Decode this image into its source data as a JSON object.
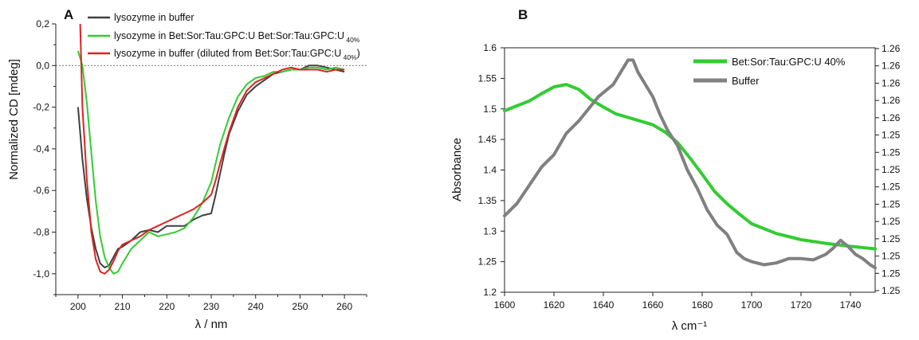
{
  "chart_data": [
    {
      "panel": "A",
      "type": "line",
      "xlabel": "λ / nm",
      "ylabel": "Normalized CD [mdeg]",
      "xlim": [
        195,
        265
      ],
      "ylim": [
        -1.1,
        0.2
      ],
      "xticks": [
        "200",
        "210",
        "220",
        "230",
        "240",
        "250",
        "260"
      ],
      "yticks": [
        "0,2",
        "0,0",
        "-0,2",
        "-0,4",
        "-0,6",
        "-0,8",
        "-1,0"
      ],
      "zero_line": true,
      "legend_placement": "top",
      "series": [
        {
          "name": "lysozyme in buffer",
          "color": "#404040",
          "x": [
            200,
            201,
            202,
            203,
            204,
            205,
            206,
            207,
            208,
            209,
            210,
            212,
            214,
            216,
            218,
            220,
            222,
            224,
            226,
            228,
            230,
            231,
            232,
            233,
            234,
            236,
            238,
            240,
            242,
            244,
            246,
            248,
            250,
            252,
            254,
            256,
            258,
            260
          ],
          "y": [
            -0.2,
            -0.45,
            -0.64,
            -0.78,
            -0.88,
            -0.95,
            -0.97,
            -0.96,
            -0.92,
            -0.88,
            -0.87,
            -0.84,
            -0.8,
            -0.79,
            -0.8,
            -0.77,
            -0.77,
            -0.77,
            -0.74,
            -0.72,
            -0.71,
            -0.62,
            -0.52,
            -0.42,
            -0.33,
            -0.22,
            -0.14,
            -0.1,
            -0.07,
            -0.04,
            -0.03,
            -0.02,
            -0.02,
            0.0,
            0.0,
            -0.01,
            -0.02,
            -0.03
          ]
        },
        {
          "name": "lysozyme in Bet:Sor:Tau:GPC:U Bet:Sor:Tau:GPC:U 40%",
          "color": "#33cc33",
          "x": [
            200,
            201,
            202,
            203,
            204,
            205,
            206,
            207,
            208,
            209,
            210,
            212,
            214,
            216,
            218,
            220,
            222,
            224,
            226,
            228,
            230,
            232,
            234,
            236,
            238,
            240,
            242,
            244,
            246,
            248,
            250,
            252,
            254,
            256,
            258,
            260
          ],
          "y": [
            0.07,
            0.0,
            -0.18,
            -0.42,
            -0.65,
            -0.82,
            -0.92,
            -0.97,
            -1.0,
            -0.99,
            -0.95,
            -0.88,
            -0.84,
            -0.8,
            -0.82,
            -0.81,
            -0.8,
            -0.78,
            -0.73,
            -0.66,
            -0.56,
            -0.38,
            -0.25,
            -0.15,
            -0.09,
            -0.06,
            -0.05,
            -0.03,
            -0.03,
            -0.02,
            -0.02,
            -0.01,
            -0.01,
            -0.02,
            -0.01,
            -0.02
          ]
        },
        {
          "name": "lysozyme in buffer (diluted from Bet:Sor:Tau:GPC:U 40%)",
          "color": "#dd2222",
          "x": [
            200.5,
            201,
            202,
            203,
            204,
            205,
            206,
            207,
            208,
            209,
            210,
            212,
            214,
            216,
            218,
            220,
            222,
            224,
            226,
            228,
            230,
            231,
            232,
            234,
            236,
            238,
            240,
            242,
            244,
            246,
            248,
            250,
            252,
            254,
            256,
            258,
            260
          ],
          "y": [
            0.2,
            -0.2,
            -0.55,
            -0.8,
            -0.93,
            -0.99,
            -1.0,
            -0.98,
            -0.94,
            -0.89,
            -0.86,
            -0.84,
            -0.82,
            -0.79,
            -0.77,
            -0.75,
            -0.73,
            -0.71,
            -0.69,
            -0.66,
            -0.62,
            -0.55,
            -0.47,
            -0.32,
            -0.2,
            -0.12,
            -0.08,
            -0.06,
            -0.04,
            -0.02,
            -0.01,
            -0.02,
            -0.02,
            -0.02,
            -0.03,
            -0.02,
            -0.02
          ]
        }
      ]
    },
    {
      "panel": "B",
      "type": "line",
      "xlabel": "λ cm⁻¹",
      "ylabel": "Absorbance",
      "xlim": [
        1600,
        1750
      ],
      "ylim": [
        1.2,
        1.6
      ],
      "xticks": [
        "1600",
        "1620",
        "1640",
        "1660",
        "1680",
        "1700",
        "1720",
        "1740"
      ],
      "yticks": [
        "1.6",
        "1.55",
        "1.5",
        "1.45",
        "1.4",
        "1.35",
        "1.3",
        "1.25",
        "1.2"
      ],
      "right_yticks": [
        "1.26",
        "1.26",
        "1.26",
        "1.26",
        "1.26",
        "1.25",
        "1.25",
        "1.25",
        "1.25",
        "1.25",
        "1.25",
        "1.25",
        "1.25",
        "1.25",
        "1.25"
      ],
      "legend_placement": "top-right",
      "series": [
        {
          "name": "Bet:Sor:Tau:GPC:U 40%",
          "color": "#33cc33",
          "x": [
            1600,
            1605,
            1610,
            1615,
            1620,
            1625,
            1630,
            1635,
            1640,
            1645,
            1650,
            1655,
            1660,
            1665,
            1670,
            1675,
            1680,
            1685,
            1690,
            1695,
            1700,
            1710,
            1720,
            1730,
            1740,
            1750
          ],
          "y": [
            1.497,
            1.505,
            1.513,
            1.525,
            1.536,
            1.54,
            1.532,
            1.515,
            1.503,
            1.492,
            1.486,
            1.48,
            1.474,
            1.462,
            1.445,
            1.42,
            1.393,
            1.365,
            1.345,
            1.328,
            1.312,
            1.296,
            1.286,
            1.28,
            1.275,
            1.271
          ]
        },
        {
          "name": "Buffer",
          "color": "#808080",
          "x": [
            1600,
            1605,
            1610,
            1615,
            1620,
            1625,
            1630,
            1635,
            1638,
            1641,
            1644,
            1647,
            1650,
            1652,
            1654,
            1657,
            1660,
            1663,
            1666,
            1670,
            1674,
            1678,
            1682,
            1686,
            1690,
            1694,
            1697,
            1700,
            1705,
            1710,
            1715,
            1720,
            1725,
            1730,
            1733,
            1736,
            1739,
            1742,
            1745,
            1748,
            1750
          ],
          "y": [
            1.325,
            1.345,
            1.375,
            1.405,
            1.425,
            1.46,
            1.48,
            1.505,
            1.52,
            1.53,
            1.54,
            1.56,
            1.58,
            1.58,
            1.56,
            1.54,
            1.52,
            1.49,
            1.465,
            1.44,
            1.4,
            1.37,
            1.335,
            1.31,
            1.295,
            1.265,
            1.255,
            1.25,
            1.245,
            1.248,
            1.255,
            1.255,
            1.253,
            1.262,
            1.272,
            1.285,
            1.275,
            1.262,
            1.255,
            1.245,
            1.24
          ]
        }
      ]
    }
  ]
}
